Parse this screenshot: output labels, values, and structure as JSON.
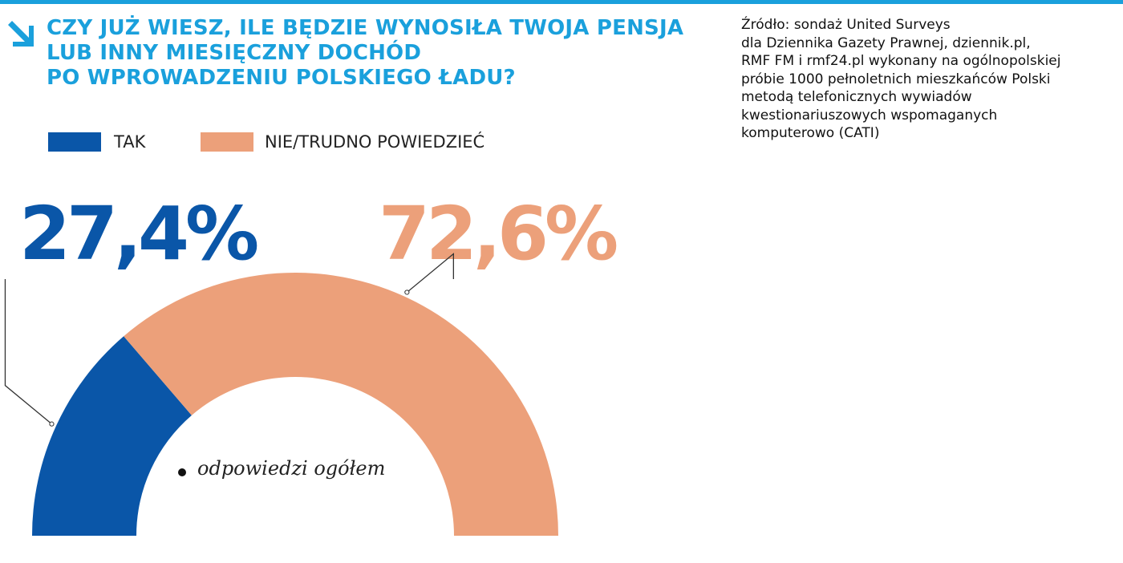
{
  "header": {
    "title_lines": [
      "CZY JUŻ WIESZ, ILE BĘDZIE WYNOSIŁA TWOJA PENSJA",
      "LUB INNY MIESIĘCZNY DOCHÓD",
      "PO WPROWADZENIU POLSKIEGO ŁADU?"
    ]
  },
  "source": {
    "lines": [
      "Źródło: sondaż United Surveys",
      "dla Dziennika Gazety Prawnej, dziennik.pl,",
      "RMF FM i rmf24.pl wykonany na ogólnopolskiej",
      "próbie 1000 pełnoletnich mieszkańców Polski",
      "metodą telefonicznych wywiadów",
      "kwestionariuszowych wspomaganych",
      "komputerowo (CATI)"
    ]
  },
  "colors": {
    "accent": "#1aa0dc",
    "tak": "#0a56a8",
    "nie": "#eca07a",
    "leader": "#333333"
  },
  "chart_data": {
    "type": "pie",
    "variant": "semicircle-donut",
    "title": "CZY JUŻ WIESZ, ILE BĘDZIE WYNOSIŁA TWOJA PENSJA LUB INNY MIESIĘCZNY DOCHÓD PO WPROWADZENIU POLSKIEGO ŁADU?",
    "categories": [
      "TAK",
      "NIE/TRUDNO POWIEDZIEĆ"
    ],
    "values": [
      27.4,
      72.6
    ],
    "value_labels": [
      "27,4%",
      "72,6%"
    ],
    "unit": "%",
    "legend": [
      "TAK",
      "NIE/TRUDNO POWIEDZIEĆ"
    ],
    "legend_position": "top-left",
    "center_note": "odpowiedzi ogółem"
  }
}
